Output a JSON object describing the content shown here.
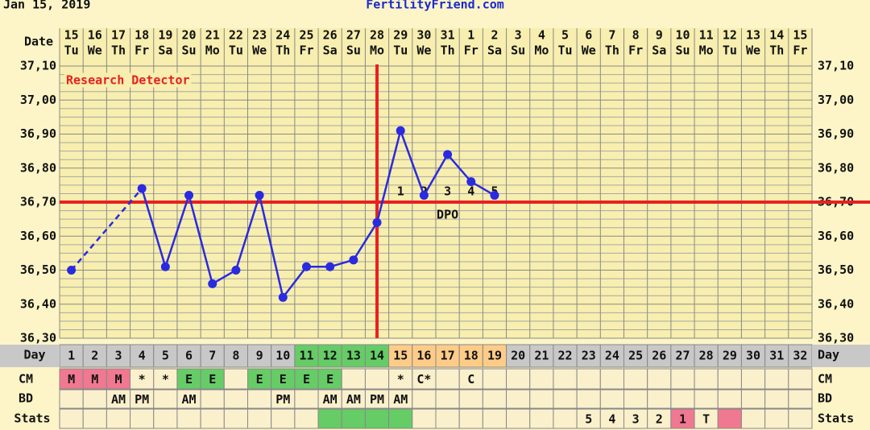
{
  "header": {
    "date": "Jan 15, 2019",
    "site": "FertilityFriend.com"
  },
  "chart_data": {
    "type": "line",
    "annotation": "Research Detector",
    "row_labels": {
      "date": "Date",
      "day": "Day",
      "cm": "CM",
      "bd": "BD",
      "stats": "Stats"
    },
    "dates": [
      15,
      16,
      17,
      18,
      19,
      20,
      21,
      22,
      23,
      24,
      25,
      26,
      27,
      28,
      29,
      30,
      31,
      1,
      2,
      3,
      4,
      5,
      6,
      7,
      8,
      9,
      10,
      11,
      12,
      13,
      14,
      15
    ],
    "weekdays": [
      "Tu",
      "We",
      "Th",
      "Fr",
      "Sa",
      "Su",
      "Mo",
      "Tu",
      "We",
      "Th",
      "Fr",
      "Sa",
      "Su",
      "Mo",
      "Tu",
      "We",
      "Th",
      "Fr",
      "Sa",
      "Su",
      "Mo",
      "Tu",
      "We",
      "Th",
      "Fr",
      "Sa",
      "Su",
      "Mo",
      "Tu",
      "We",
      "Th",
      "Fr"
    ],
    "categories": [
      1,
      2,
      3,
      4,
      5,
      6,
      7,
      8,
      9,
      10,
      11,
      12,
      13,
      14,
      15,
      16,
      17,
      18,
      19,
      20,
      21,
      22,
      23,
      24,
      25,
      26,
      27,
      28,
      29,
      30,
      31,
      32
    ],
    "day_colors": [
      "#c8c8c8",
      "#c8c8c8",
      "#c8c8c8",
      "#c8c8c8",
      "#c8c8c8",
      "#c8c8c8",
      "#c8c8c8",
      "#c8c8c8",
      "#c8c8c8",
      "#c8c8c8",
      "#66cc66",
      "#66cc66",
      "#66cc66",
      "#66cc66",
      "#ffcc88",
      "#ffcc88",
      "#ffcc88",
      "#ffcc88",
      "#ffcc88",
      "#c8c8c8",
      "#c8c8c8",
      "#c8c8c8",
      "#c8c8c8",
      "#c8c8c8",
      "#c8c8c8",
      "#c8c8c8",
      "#c8c8c8",
      "#c8c8c8",
      "#c8c8c8",
      "#c8c8c8",
      "#c8c8c8",
      "#c8c8c8"
    ],
    "series": [
      {
        "color": "#2a2ae0",
        "values": [
          36.5,
          null,
          null,
          36.74,
          36.51,
          36.72,
          36.46,
          36.5,
          36.72,
          36.42,
          36.51,
          36.51,
          36.53,
          36.64,
          36.91,
          36.72,
          36.84,
          36.76,
          36.72,
          null,
          null,
          null,
          null,
          null,
          null,
          null,
          null,
          null,
          null,
          null,
          null,
          null
        ]
      }
    ],
    "coverline": 36.7,
    "line_color": "#e82020",
    "ovulation_day": 14,
    "dpo": {
      "label": "DPO",
      "values": [
        1,
        2,
        3,
        4,
        5
      ]
    },
    "ylim": [
      36.3,
      37.1
    ],
    "yticks": [
      {
        "value": 36.3,
        "label": "36,30"
      },
      {
        "value": 36.4,
        "label": "36,40"
      },
      {
        "value": 36.5,
        "label": "36,50"
      },
      {
        "value": 36.6,
        "label": "36,60"
      },
      {
        "value": 36.7,
        "label": "36,70"
      },
      {
        "value": 36.8,
        "label": "36,80"
      },
      {
        "value": 36.9,
        "label": "36,90"
      },
      {
        "value": 37.0,
        "label": "37,00"
      },
      {
        "value": 37.1,
        "label": "37,10"
      }
    ],
    "grid": true,
    "cm": [
      "M",
      "M",
      "M",
      "*",
      "*",
      "E",
      "E",
      null,
      "E",
      "E",
      "E",
      "E",
      null,
      null,
      "*",
      "C*",
      null,
      "C",
      null,
      null,
      null,
      null,
      null,
      null,
      null,
      null,
      null,
      null,
      null,
      null,
      null,
      null
    ],
    "cm_colors": [
      "#f07890",
      "#f07890",
      "#f07890",
      null,
      null,
      "#66cc66",
      "#66cc66",
      null,
      "#66cc66",
      "#66cc66",
      "#66cc66",
      "#66cc66",
      null,
      null,
      null,
      null,
      null,
      null,
      null,
      null,
      null,
      null,
      null,
      null,
      null,
      null,
      null,
      null,
      null,
      null,
      null,
      null
    ],
    "bd": [
      null,
      null,
      "AM",
      "PM",
      null,
      "AM",
      null,
      null,
      null,
      "PM",
      null,
      "AM",
      "AM",
      "PM",
      "AM",
      null,
      null,
      null,
      null,
      null,
      null,
      null,
      null,
      null,
      null,
      null,
      null,
      null,
      null,
      null,
      null,
      null
    ],
    "stats": [
      null,
      null,
      null,
      null,
      null,
      null,
      null,
      null,
      null,
      null,
      null,
      null,
      null,
      null,
      null,
      null,
      null,
      null,
      null,
      null,
      null,
      null,
      5,
      4,
      3,
      2,
      1,
      "T",
      null,
      null,
      null,
      null
    ],
    "stats_colors": [
      null,
      null,
      null,
      null,
      null,
      null,
      null,
      null,
      null,
      null,
      null,
      "#66cc66",
      "#66cc66",
      "#66cc66",
      "#66cc66",
      null,
      null,
      null,
      null,
      null,
      null,
      null,
      null,
      null,
      null,
      null,
      "#f07890",
      null,
      "#f07890",
      null,
      null,
      null
    ]
  }
}
